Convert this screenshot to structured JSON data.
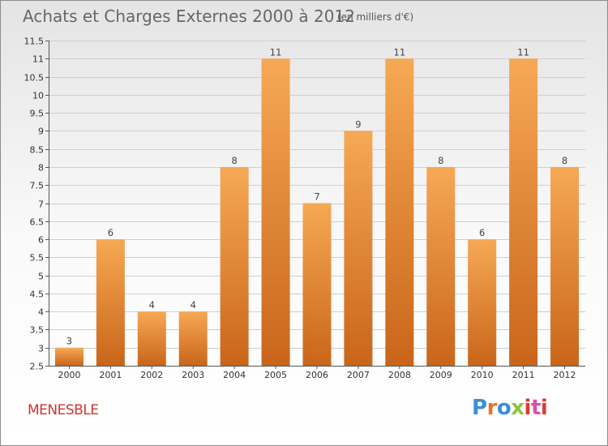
{
  "header": {
    "title": "Achats et Charges Externes 2000 à 2012",
    "subtitle": "(en milliers d'€)"
  },
  "footer": {
    "commune": "MENESBLE",
    "brand": "Proxiti",
    "brand_colors": [
      "#3a8fd8",
      "#e9731e",
      "#3a8fd8",
      "#8cc63f",
      "#e2392b",
      "#d94fb0",
      "#e2392b"
    ]
  },
  "colors": {
    "bar_top": "#f6a955",
    "bar_bottom": "#c9651a",
    "grid": "#cfcfcf",
    "axis": "#555555"
  },
  "chart_data": {
    "type": "bar",
    "title": "Achats et Charges Externes 2000 à 2012",
    "categories": [
      "2000",
      "2001",
      "2002",
      "2003",
      "2004",
      "2005",
      "2006",
      "2007",
      "2008",
      "2009",
      "2010",
      "2011",
      "2012"
    ],
    "values": [
      3,
      6,
      4,
      4,
      8,
      11,
      7,
      9,
      11,
      8,
      6,
      11,
      8
    ],
    "data_labels": [
      "3",
      "6",
      "4",
      "4",
      "8",
      "11",
      "7",
      "9",
      "11",
      "8",
      "6",
      "11",
      "8"
    ],
    "ylim": [
      2.5,
      11.5
    ],
    "yticks": [
      2.5,
      3,
      3.5,
      4,
      4.5,
      5,
      5.5,
      6,
      6.5,
      7,
      7.5,
      8,
      8.5,
      9,
      9.5,
      10,
      10.5,
      11,
      11.5
    ],
    "ytick_labels": [
      "2.5",
      "3",
      "3.5",
      "4",
      "4.5",
      "5",
      "5.5",
      "6",
      "6.5",
      "7",
      "7.5",
      "8",
      "8.5",
      "9",
      "9.5",
      "10",
      "10.5",
      "11",
      "11.5"
    ],
    "grid": true,
    "xlabel": "",
    "ylabel": ""
  }
}
